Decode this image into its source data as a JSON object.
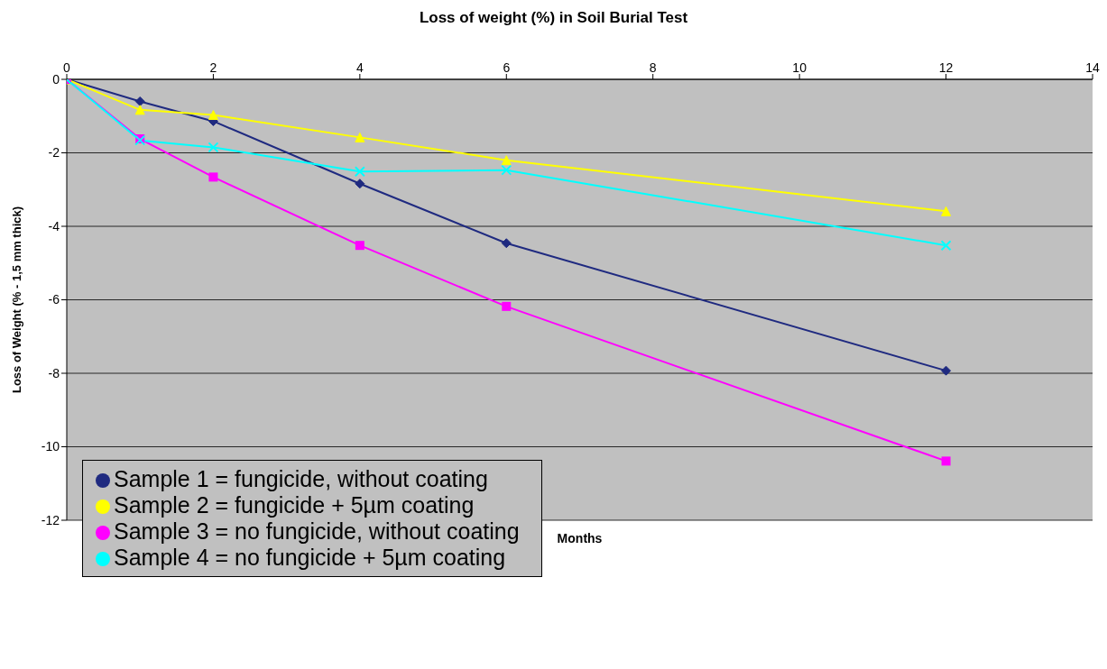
{
  "chart_data": {
    "type": "line",
    "title": "Loss of weight (%) in Soil Burial Test",
    "xlabel": "Months",
    "ylabel": "Loss of Weight (% - 1,5 mm thick)",
    "x": [
      0,
      1,
      2,
      4,
      6,
      12
    ],
    "series": [
      {
        "name": "Sample 1 = fungicide, without coating",
        "color": "#1f2a80",
        "marker": "diamond",
        "values": [
          0,
          -0.6,
          -1.14,
          -2.84,
          -4.46,
          -7.93
        ]
      },
      {
        "name": "Sample 2 = fungicide + 5µm coating",
        "color": "#ffff00",
        "marker": "triangle",
        "values": [
          0,
          -0.83,
          -0.97,
          -1.58,
          -2.2,
          -3.59
        ]
      },
      {
        "name": "Sample 3 = no fungicide, without coating",
        "color": "#ff00ff",
        "marker": "square",
        "values": [
          0,
          -1.62,
          -2.66,
          -4.52,
          -6.18,
          -10.39
        ]
      },
      {
        "name": "Sample 4 = no fungicide + 5µm coating",
        "color": "#00ffff",
        "marker": "cross",
        "values": [
          0,
          -1.66,
          -1.85,
          -2.51,
          -2.47,
          -4.52
        ]
      }
    ],
    "xlim": [
      0,
      14
    ],
    "xticks": [
      0,
      2,
      4,
      6,
      8,
      10,
      12,
      14
    ],
    "ylim": [
      -12,
      0
    ],
    "yticks": [
      -12,
      -10,
      -8,
      -6,
      -4,
      -2,
      0
    ],
    "grid": "y",
    "legend": "bottom left",
    "line_style": "solid"
  }
}
